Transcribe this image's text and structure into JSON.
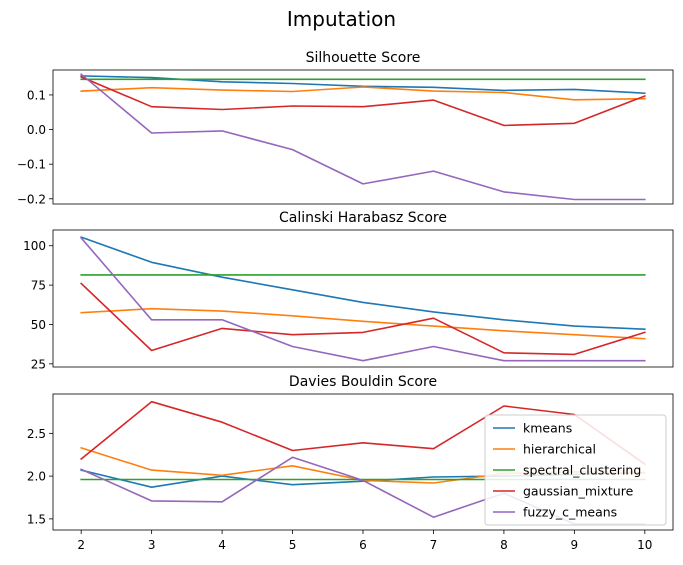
{
  "figure": {
    "suptitle": "Imputation"
  },
  "legend": {
    "location": "lower-right",
    "entries": [
      "kmeans",
      "hierarchical",
      "spectral_clustering",
      "gaussian_mixture",
      "fuzzy_c_means"
    ]
  },
  "colors": {
    "kmeans": "#1f77b4",
    "hierarchical": "#ff7f0e",
    "spectral_clustering": "#2ca02c",
    "gaussian_mixture": "#d62728",
    "fuzzy_c_means": "#9467bd"
  },
  "chart_data": [
    {
      "type": "line",
      "title": "Silhouette Score",
      "x": [
        2,
        3,
        4,
        5,
        6,
        7,
        8,
        9,
        10
      ],
      "ylim": [
        -0.215,
        0.172
      ],
      "yticks": [
        0.1,
        0.0,
        -0.1,
        -0.2
      ],
      "ytick_labels": [
        "0.1",
        "0.0",
        "−0.1",
        "−0.2"
      ],
      "show_xticks": false,
      "series": [
        {
          "name": "kmeans",
          "values": [
            0.155,
            0.15,
            0.138,
            0.133,
            0.125,
            0.122,
            0.113,
            0.116,
            0.105
          ]
        },
        {
          "name": "hierarchical",
          "values": [
            0.111,
            0.121,
            0.114,
            0.11,
            0.123,
            0.111,
            0.107,
            0.086,
            0.089
          ]
        },
        {
          "name": "spectral_clustering",
          "values": [
            0.145,
            0.145,
            0.145,
            0.145,
            0.145,
            0.145,
            0.145,
            0.145,
            0.145
          ]
        },
        {
          "name": "gaussian_mixture",
          "values": [
            0.152,
            0.066,
            0.058,
            0.068,
            0.066,
            0.085,
            0.012,
            0.018,
            0.097
          ]
        },
        {
          "name": "fuzzy_c_means",
          "values": [
            0.16,
            -0.01,
            -0.004,
            -0.058,
            -0.157,
            -0.12,
            -0.18,
            -0.202,
            -0.202
          ]
        }
      ]
    },
    {
      "type": "line",
      "title": "Calinski Harabasz Score",
      "x": [
        2,
        3,
        4,
        5,
        6,
        7,
        8,
        9,
        10
      ],
      "ylim": [
        23,
        110
      ],
      "yticks": [
        100,
        75,
        50,
        25
      ],
      "ytick_labels": [
        "100",
        "75",
        "50",
        "25"
      ],
      "show_xticks": false,
      "series": [
        {
          "name": "kmeans",
          "values": [
            105.5,
            89.5,
            80,
            72,
            64,
            58,
            53,
            49,
            47
          ]
        },
        {
          "name": "hierarchical",
          "values": [
            57.5,
            60,
            58.5,
            55.5,
            52,
            49,
            46,
            43.5,
            41
          ]
        },
        {
          "name": "spectral_clustering",
          "values": [
            81.5,
            81.5,
            81.5,
            81.5,
            81.5,
            81.5,
            81.5,
            81.5,
            81.5
          ]
        },
        {
          "name": "gaussian_mixture",
          "values": [
            76,
            33.5,
            47.5,
            43.5,
            45,
            54,
            32,
            31,
            45
          ]
        },
        {
          "name": "fuzzy_c_means",
          "values": [
            105,
            53,
            53,
            36,
            27,
            36,
            27,
            27,
            27
          ]
        }
      ]
    },
    {
      "type": "line",
      "title": "Davies Bouldin Score",
      "x": [
        2,
        3,
        4,
        5,
        6,
        7,
        8,
        9,
        10
      ],
      "xticks": [
        "2",
        "3",
        "4",
        "5",
        "6",
        "7",
        "8",
        "9",
        "10"
      ],
      "ylim": [
        1.37,
        2.96
      ],
      "yticks": [
        2.5,
        2.0,
        1.5
      ],
      "ytick_labels": [
        "2.5",
        "2.0",
        "1.5"
      ],
      "show_xticks": true,
      "series": [
        {
          "name": "kmeans",
          "values": [
            2.07,
            1.87,
            2.0,
            1.9,
            1.94,
            1.99,
            2.0,
            2.02,
            2.04
          ]
        },
        {
          "name": "hierarchical",
          "values": [
            2.33,
            2.07,
            2.01,
            2.12,
            1.95,
            1.92,
            2.03,
            2.05,
            2.04
          ]
        },
        {
          "name": "spectral_clustering",
          "values": [
            1.96,
            1.96,
            1.96,
            1.96,
            1.96,
            1.96,
            1.96,
            1.96,
            1.96
          ]
        },
        {
          "name": "gaussian_mixture",
          "values": [
            2.2,
            2.87,
            2.63,
            2.3,
            2.39,
            2.32,
            2.82,
            2.72,
            2.14
          ]
        },
        {
          "name": "fuzzy_c_means",
          "values": [
            2.08,
            1.71,
            1.7,
            2.22,
            1.95,
            1.52,
            1.8,
            1.44,
            1.44
          ]
        }
      ]
    }
  ]
}
